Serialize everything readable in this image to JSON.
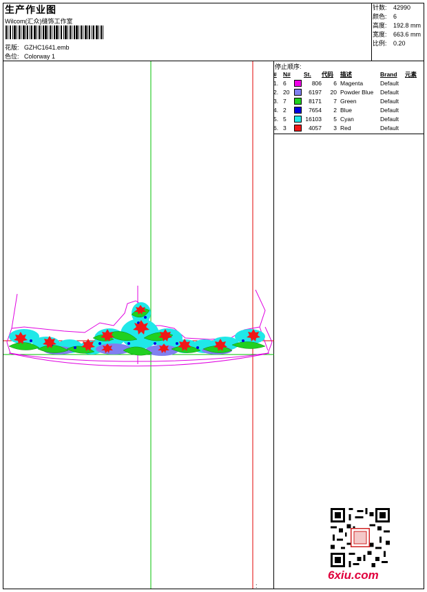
{
  "header": {
    "title": "生产作业图",
    "company": "Wilcom(汇众)缝饰工作室",
    "design_label": "花版:",
    "design_value": "GZHC1641.emb",
    "colorway_label": "色位:",
    "colorway_value": "Colorway 1"
  },
  "stats": [
    {
      "label": "针数:",
      "value": "42990"
    },
    {
      "label": "颜色:",
      "value": "6"
    },
    {
      "label": "高度:",
      "value": "192.8 mm"
    },
    {
      "label": "宽度:",
      "value": "663.6 mm"
    },
    {
      "label": "比例:",
      "value": "0.20"
    }
  ],
  "stop_sequence": {
    "title": "停止顺序:",
    "columns": [
      "#",
      "N#",
      "St.",
      "代码",
      "描述",
      "Brand",
      "元素"
    ],
    "rows": [
      {
        "idx": "1.",
        "n": "6",
        "color": "#f000e8",
        "st": "806",
        "code": "6",
        "desc": "Magenta",
        "brand": "Default"
      },
      {
        "idx": "2.",
        "n": "20",
        "color": "#8080f0",
        "st": "6197",
        "code": "20",
        "desc": "Powder Blue",
        "brand": "Default"
      },
      {
        "idx": "3.",
        "n": "7",
        "color": "#20d020",
        "st": "8171",
        "code": "7",
        "desc": "Green",
        "brand": "Default"
      },
      {
        "idx": "4.",
        "n": "2",
        "color": "#0000e0",
        "st": "7654",
        "code": "2",
        "desc": "Blue",
        "brand": "Default"
      },
      {
        "idx": "5.",
        "n": "5",
        "color": "#20e8e8",
        "st": "16103",
        "code": "5",
        "desc": "Cyan",
        "brand": "Default"
      },
      {
        "idx": "6.",
        "n": "3",
        "color": "#f01818",
        "st": "4057",
        "code": "3",
        "desc": "Red",
        "brand": "Default"
      }
    ]
  },
  "footer": {
    "logo_text": "6xiu.com",
    "colon": ":"
  },
  "colors": {
    "guide_green": "#00c000",
    "guide_red": "#e00000",
    "outline_magenta": "#e000e0"
  }
}
